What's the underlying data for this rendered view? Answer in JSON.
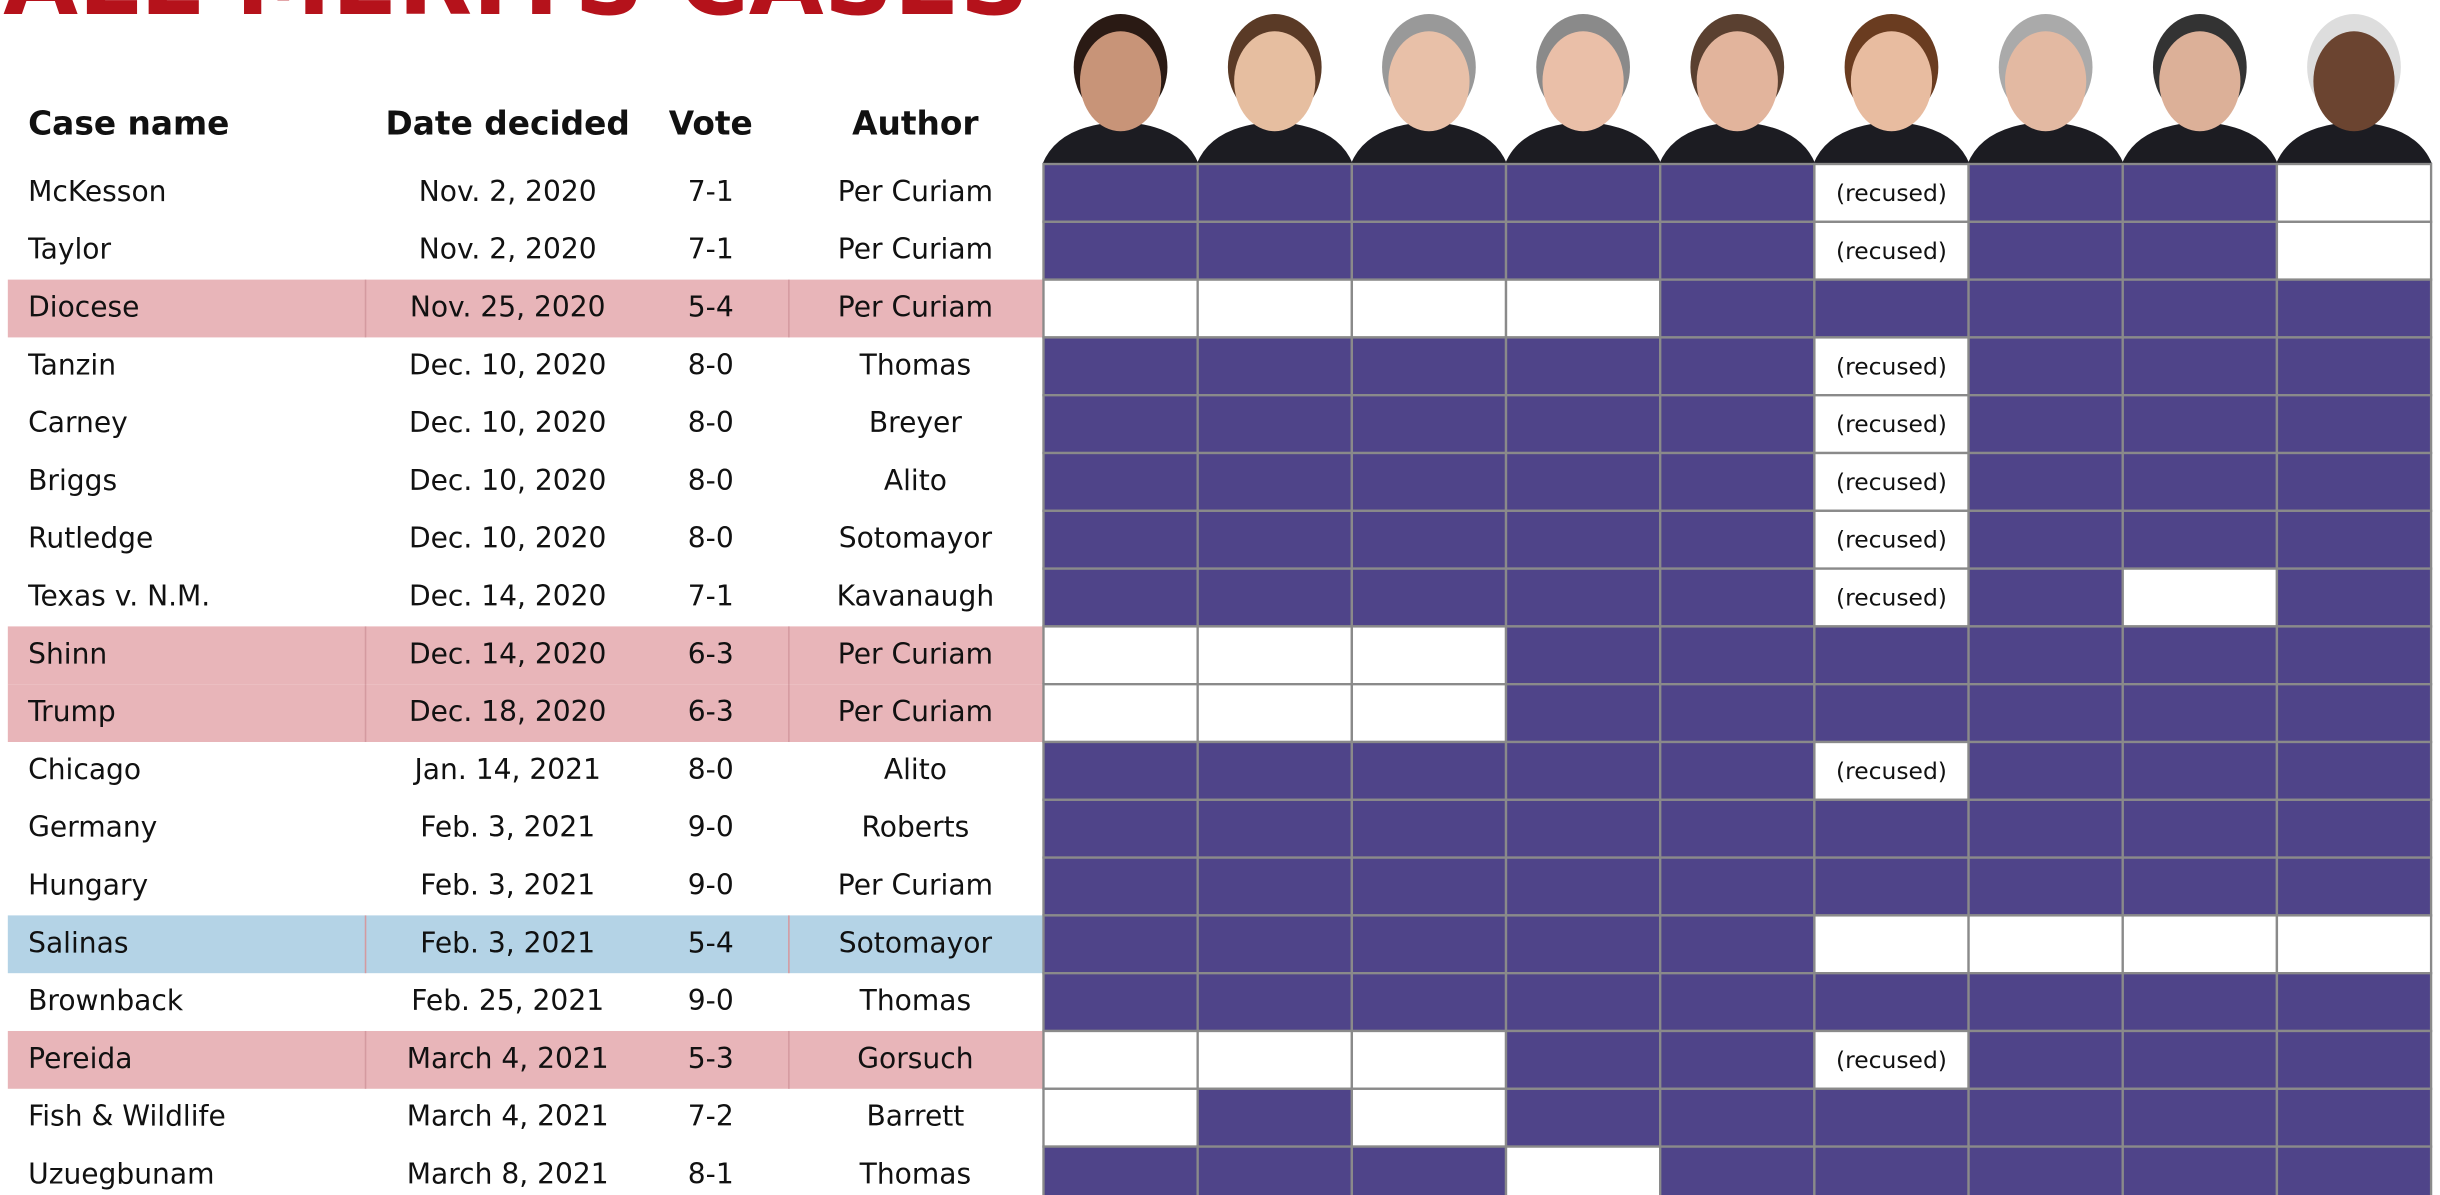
{
  "header": {
    "title": "ALL MERITS CASES",
    "columns": [
      "Case name",
      "Date decided",
      "Vote",
      "Author"
    ]
  },
  "table": {
    "rows": [
      {
        "case": "McKesson",
        "date": "Nov. 2, 2020",
        "vote": "7-1",
        "author": "Per Curiam",
        "row_color": null,
        "cells": [
          "#4f4489",
          "#4f4489",
          "#4f4489",
          "#4f4489",
          "#4f4489",
          "(recused)",
          "#4f4489",
          "#4f4489",
          "#ffffff"
        ]
      },
      {
        "case": "Taylor",
        "date": "Nov. 2, 2020",
        "vote": "7-1",
        "author": "Per Curiam",
        "row_color": null,
        "cells": [
          "#4f4489",
          "#4f4489",
          "#4f4489",
          "#4f4489",
          "#4f4489",
          "(recused)",
          "#4f4489",
          "#4f4489",
          "#ffffff"
        ]
      },
      {
        "case": "Diocese",
        "date": "Nov. 25, 2020",
        "vote": "5-4",
        "author": "Per Curiam",
        "row_color": "#e8b5b9",
        "cells": [
          "#ffffff",
          "#ffffff",
          "#ffffff",
          "#ffffff",
          "#4f4489",
          "#4f4489",
          "#4f4489",
          "#4f4489",
          "#4f4489"
        ]
      },
      {
        "case": "Tanzin",
        "date": "Dec. 10, 2020",
        "vote": "8-0",
        "author": "Thomas",
        "row_color": null,
        "cells": [
          "#4f4489",
          "#4f4489",
          "#4f4489",
          "#4f4489",
          "#4f4489",
          "(recused)",
          "#4f4489",
          "#4f4489",
          "#4f4489"
        ]
      },
      {
        "case": "Carney",
        "date": "Dec. 10, 2020",
        "vote": "8-0",
        "author": "Breyer",
        "row_color": null,
        "cells": [
          "#4f4489",
          "#4f4489",
          "#4f4489",
          "#4f4489",
          "#4f4489",
          "(recused)",
          "#4f4489",
          "#4f4489",
          "#4f4489"
        ]
      },
      {
        "case": "Briggs",
        "date": "Dec. 10, 2020",
        "vote": "8-0",
        "author": "Alito",
        "row_color": null,
        "cells": [
          "#4f4489",
          "#4f4489",
          "#4f4489",
          "#4f4489",
          "#4f4489",
          "(recused)",
          "#4f4489",
          "#4f4489",
          "#4f4489"
        ]
      },
      {
        "case": "Rutledge",
        "date": "Dec. 10, 2020",
        "vote": "8-0",
        "author": "Sotomayor",
        "row_color": null,
        "cells": [
          "#4f4489",
          "#4f4489",
          "#4f4489",
          "#4f4489",
          "#4f4489",
          "(recused)",
          "#4f4489",
          "#4f4489",
          "#4f4489"
        ]
      },
      {
        "case": "Texas v. N.M.",
        "date": "Dec. 14, 2020",
        "vote": "7-1",
        "author": "Kavanaugh",
        "row_color": null,
        "cells": [
          "#4f4489",
          "#4f4489",
          "#4f4489",
          "#4f4489",
          "#4f4489",
          "(recused)",
          "#4f4489",
          "#ffffff",
          "#4f4489"
        ]
      },
      {
        "case": "Shinn",
        "date": "Dec. 14, 2020",
        "vote": "6-3",
        "author": "Per Curiam",
        "row_color": "#e8b5b9",
        "cells": [
          "#ffffff",
          "#ffffff",
          "#ffffff",
          "#4f4489",
          "#4f4489",
          "#4f4489",
          "#4f4489",
          "#4f4489",
          "#4f4489"
        ]
      },
      {
        "case": "Trump",
        "date": "Dec. 18, 2020",
        "vote": "6-3",
        "author": "Per Curiam",
        "row_color": "#e8b5b9",
        "cells": [
          "#ffffff",
          "#ffffff",
          "#ffffff",
          "#4f4489",
          "#4f4489",
          "#4f4489",
          "#4f4489",
          "#4f4489",
          "#4f4489"
        ]
      },
      {
        "case": "Chicago",
        "date": "Jan. 14, 2021",
        "vote": "8-0",
        "author": "Alito",
        "row_color": null,
        "cells": [
          "#4f4489",
          "#4f4489",
          "#4f4489",
          "#4f4489",
          "#4f4489",
          "(recused)",
          "#4f4489",
          "#4f4489",
          "#4f4489"
        ]
      },
      {
        "case": "Germany",
        "date": "Feb. 3, 2021",
        "vote": "9-0",
        "author": "Roberts",
        "row_color": null,
        "cells": [
          "#4f4489",
          "#4f4489",
          "#4f4489",
          "#4f4489",
          "#4f4489",
          "#4f4489",
          "#4f4489",
          "#4f4489",
          "#4f4489"
        ]
      },
      {
        "case": "Hungary",
        "date": "Feb. 3, 2021",
        "vote": "9-0",
        "author": "Per Curiam",
        "row_color": null,
        "cells": [
          "#4f4489",
          "#4f4489",
          "#4f4489",
          "#4f4489",
          "#4f4489",
          "#4f4489",
          "#4f4489",
          "#4f4489",
          "#4f4489"
        ]
      },
      {
        "case": "Salinas",
        "date": "Feb. 3, 2021",
        "vote": "5-4",
        "author": "Sotomayor",
        "row_color": "#b4d3e6",
        "cells": [
          "#4f4489",
          "#4f4489",
          "#4f4489",
          "#4f4489",
          "#4f4489",
          "#ffffff",
          "#ffffff",
          "#ffffff",
          "#ffffff"
        ]
      },
      {
        "case": "Brownback",
        "date": "Feb. 25, 2021",
        "vote": "9-0",
        "author": "Thomas",
        "row_color": null,
        "cells": [
          "#4f4489",
          "#4f4489",
          "#4f4489",
          "#4f4489",
          "#4f4489",
          "#4f4489",
          "#4f4489",
          "#4f4489",
          "#4f4489"
        ]
      },
      {
        "case": "Pereida",
        "date": "March 4, 2021",
        "vote": "5-3",
        "author": "Gorsuch",
        "row_color": "#e8b5b9",
        "cells": [
          "#ffffff",
          "#ffffff",
          "#ffffff",
          "#4f4489",
          "#4f4489",
          "(recused)",
          "#4f4489",
          "#4f4489",
          "#4f4489"
        ]
      },
      {
        "case": "Fish & Wildlife",
        "date": "March 4, 2021",
        "vote": "7-2",
        "author": "Barrett",
        "row_color": null,
        "cells": [
          "#ffffff",
          "#4f4489",
          "#ffffff",
          "#4f4489",
          "#4f4489",
          "#4f4489",
          "#4f4489",
          "#4f4489",
          "#4f4489"
        ]
      },
      {
        "case": "Uzuegbunam",
        "date": "March 8, 2021",
        "vote": "8-1",
        "author": "Thomas",
        "row_color": null,
        "cells": [
          "#4f4489",
          "#4f4489",
          "#4f4489",
          "#ffffff",
          "#4f4489",
          "#4f4489",
          "#4f4489",
          "#4f4489",
          "#4f4489"
        ]
      }
    ]
  }
}
